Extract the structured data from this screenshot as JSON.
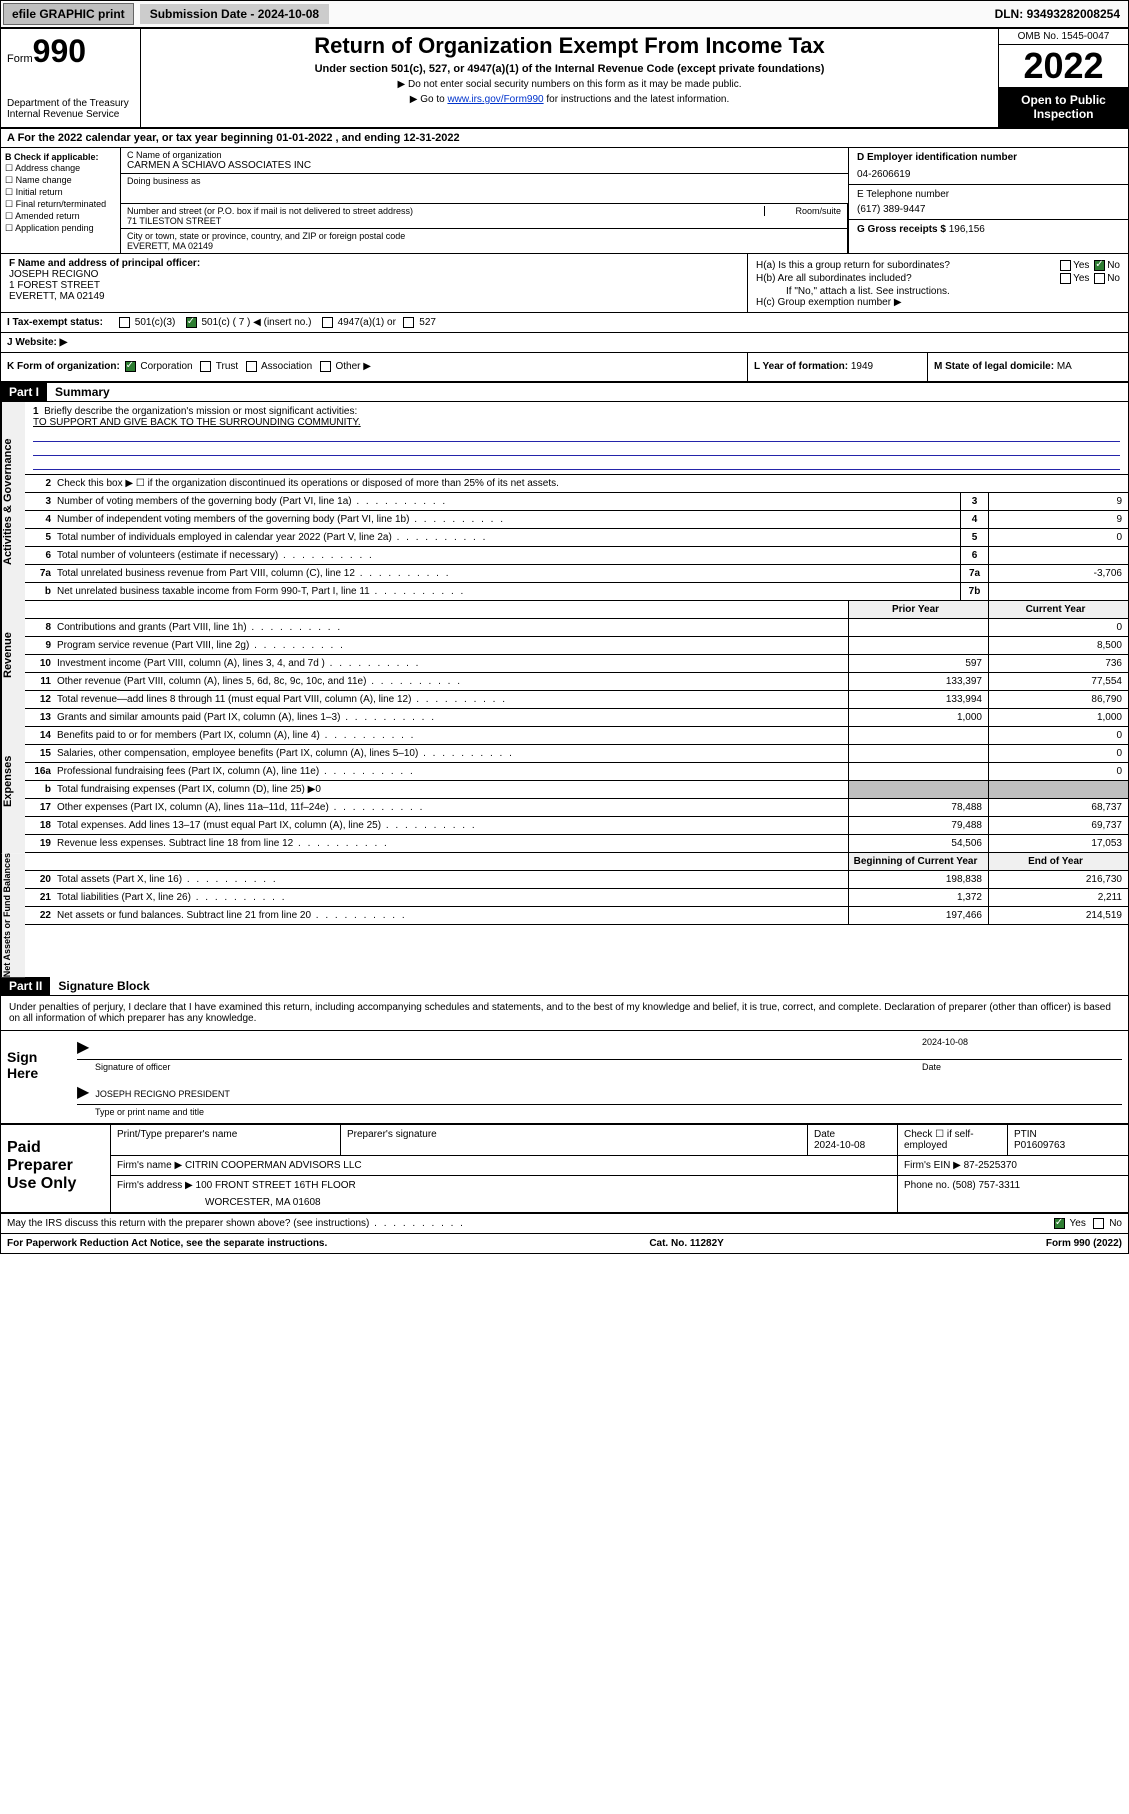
{
  "topbar": {
    "efile": "efile GRAPHIC print",
    "submission_label": "Submission Date - ",
    "submission_date": "2024-10-08",
    "dln_label": "DLN: ",
    "dln": "93493282008254"
  },
  "header": {
    "form_prefix": "Form",
    "form_number": "990",
    "dept": "Department of the Treasury\nInternal Revenue Service",
    "title": "Return of Organization Exempt From Income Tax",
    "subtitle": "Under section 501(c), 527, or 4947(a)(1) of the Internal Revenue Code (except private foundations)",
    "note1": "▶ Do not enter social security numbers on this form as it may be made public.",
    "note2_pre": "▶ Go to ",
    "note2_link": "www.irs.gov/Form990",
    "note2_post": " for instructions and the latest information.",
    "omb": "OMB No. 1545-0047",
    "year": "2022",
    "open_pub": "Open to Public Inspection"
  },
  "row_a": "A For the 2022 calendar year, or tax year beginning 01-01-2022   , and ending 12-31-2022",
  "section_b": {
    "label": "B Check if applicable:",
    "opts": [
      "Address change",
      "Name change",
      "Initial return",
      "Final return/terminated",
      "Amended return",
      "Application pending"
    ]
  },
  "section_c": {
    "name_label": "C Name of organization",
    "name": "CARMEN A SCHIAVO ASSOCIATES INC",
    "dba_label": "Doing business as",
    "dba": "",
    "street_label": "Number and street (or P.O. box if mail is not delivered to street address)",
    "room_label": "Room/suite",
    "street": "71 TILESTON STREET",
    "city_label": "City or town, state or province, country, and ZIP or foreign postal code",
    "city": "EVERETT, MA  02149"
  },
  "section_d": {
    "label": "D Employer identification number",
    "value": "04-2606619"
  },
  "section_e": {
    "label": "E Telephone number",
    "value": "(617) 389-9447"
  },
  "section_g": {
    "label": "G Gross receipts $ ",
    "value": "196,156"
  },
  "section_f": {
    "label": "F Name and address of principal officer:",
    "name": "JOSEPH RECIGNO",
    "street": "1 FOREST STREET",
    "city": "EVERETT, MA  02149"
  },
  "section_h": {
    "ha": "H(a)  Is this a group return for subordinates?",
    "hb": "H(b)  Are all subordinates included?",
    "hb_note": "If \"No,\" attach a list. See instructions.",
    "hc": "H(c)  Group exemption number ▶",
    "yes": "Yes",
    "no": "No"
  },
  "row_i": {
    "label": "I    Tax-exempt status:",
    "opt1": "501(c)(3)",
    "opt2": "501(c) ( 7 ) ◀ (insert no.)",
    "opt3": "4947(a)(1) or",
    "opt4": "527"
  },
  "row_j": {
    "label": "J    Website: ▶",
    "value": ""
  },
  "row_k": {
    "label": "K Form of organization:",
    "opts": [
      "Corporation",
      "Trust",
      "Association",
      "Other ▶"
    ]
  },
  "row_l": {
    "label": "L Year of formation: ",
    "value": "1949"
  },
  "row_m": {
    "label": "M State of legal domicile: ",
    "value": "MA"
  },
  "part1": {
    "header": "Part I",
    "title": "Summary"
  },
  "mission": {
    "num": "1",
    "label": "Briefly describe the organization's mission or most significant activities:",
    "text": "TO SUPPORT AND GIVE BACK TO THE SURROUNDING COMMUNITY."
  },
  "lines_gov": [
    {
      "num": "2",
      "txt": "Check this box ▶ ☐  if the organization discontinued its operations or disposed of more than 25% of its net assets.",
      "nobox": true
    },
    {
      "num": "3",
      "txt": "Number of voting members of the governing body (Part VI, line 1a)",
      "box": "3",
      "val": "9"
    },
    {
      "num": "4",
      "txt": "Number of independent voting members of the governing body (Part VI, line 1b)",
      "box": "4",
      "val": "9"
    },
    {
      "num": "5",
      "txt": "Total number of individuals employed in calendar year 2022 (Part V, line 2a)",
      "box": "5",
      "val": "0"
    },
    {
      "num": "6",
      "txt": "Total number of volunteers (estimate if necessary)",
      "box": "6",
      "val": ""
    },
    {
      "num": "7a",
      "txt": "Total unrelated business revenue from Part VIII, column (C), line 12",
      "box": "7a",
      "val": "-3,706"
    },
    {
      "num": "b",
      "txt": "Net unrelated business taxable income from Form 990-T, Part I, line 11",
      "box": "7b",
      "val": ""
    }
  ],
  "col_headers": {
    "prior": "Prior Year",
    "curr": "Current Year"
  },
  "lines_rev": [
    {
      "num": "8",
      "txt": "Contributions and grants (Part VIII, line 1h)",
      "prior": "",
      "curr": "0"
    },
    {
      "num": "9",
      "txt": "Program service revenue (Part VIII, line 2g)",
      "prior": "",
      "curr": "8,500"
    },
    {
      "num": "10",
      "txt": "Investment income (Part VIII, column (A), lines 3, 4, and 7d )",
      "prior": "597",
      "curr": "736"
    },
    {
      "num": "11",
      "txt": "Other revenue (Part VIII, column (A), lines 5, 6d, 8c, 9c, 10c, and 11e)",
      "prior": "133,397",
      "curr": "77,554"
    },
    {
      "num": "12",
      "txt": "Total revenue—add lines 8 through 11 (must equal Part VIII, column (A), line 12)",
      "prior": "133,994",
      "curr": "86,790"
    }
  ],
  "lines_exp": [
    {
      "num": "13",
      "txt": "Grants and similar amounts paid (Part IX, column (A), lines 1–3)",
      "prior": "1,000",
      "curr": "1,000"
    },
    {
      "num": "14",
      "txt": "Benefits paid to or for members (Part IX, column (A), line 4)",
      "prior": "",
      "curr": "0"
    },
    {
      "num": "15",
      "txt": "Salaries, other compensation, employee benefits (Part IX, column (A), lines 5–10)",
      "prior": "",
      "curr": "0"
    },
    {
      "num": "16a",
      "txt": "Professional fundraising fees (Part IX, column (A), line 11e)",
      "prior": "",
      "curr": "0"
    },
    {
      "num": "b",
      "txt": "Total fundraising expenses (Part IX, column (D), line 25) ▶0",
      "shaded": true
    },
    {
      "num": "17",
      "txt": "Other expenses (Part IX, column (A), lines 11a–11d, 11f–24e)",
      "prior": "78,488",
      "curr": "68,737"
    },
    {
      "num": "18",
      "txt": "Total expenses. Add lines 13–17 (must equal Part IX, column (A), line 25)",
      "prior": "79,488",
      "curr": "69,737"
    },
    {
      "num": "19",
      "txt": "Revenue less expenses. Subtract line 18 from line 12",
      "prior": "54,506",
      "curr": "17,053"
    }
  ],
  "col_headers_na": {
    "begin": "Beginning of Current Year",
    "end": "End of Year"
  },
  "lines_na": [
    {
      "num": "20",
      "txt": "Total assets (Part X, line 16)",
      "prior": "198,838",
      "curr": "216,730"
    },
    {
      "num": "21",
      "txt": "Total liabilities (Part X, line 26)",
      "prior": "1,372",
      "curr": "2,211"
    },
    {
      "num": "22",
      "txt": "Net assets or fund balances. Subtract line 21 from line 20",
      "prior": "197,466",
      "curr": "214,519"
    }
  ],
  "vert_labels": {
    "gov": "Activities & Governance",
    "rev": "Revenue",
    "exp": "Expenses",
    "na": "Net Assets or Fund Balances"
  },
  "part2": {
    "header": "Part II",
    "title": "Signature Block"
  },
  "sig_decl": "Under penalties of perjury, I declare that I have examined this return, including accompanying schedules and statements, and to the best of my knowledge and belief, it is true, correct, and complete. Declaration of preparer (other than officer) is based on all information of which preparer has any knowledge.",
  "sign_here": {
    "label": "Sign Here",
    "sig_of_officer": "Signature of officer",
    "date_label": "Date",
    "date": "2024-10-08",
    "name_title": "JOSEPH RECIGNO  PRESIDENT",
    "type_label": "Type or print name and title"
  },
  "paid": {
    "label": "Paid Preparer Use Only",
    "print_label": "Print/Type preparer's name",
    "prep_sig_label": "Preparer's signature",
    "date_label": "Date",
    "date": "2024-10-08",
    "check_label": "Check ☐ if self-employed",
    "ptin_label": "PTIN",
    "ptin": "P01609763",
    "firm_name_label": "Firm's name    ▶ ",
    "firm_name": "CITRIN COOPERMAN ADVISORS LLC",
    "firm_ein_label": "Firm's EIN ▶ ",
    "firm_ein": "87-2525370",
    "firm_addr_label": "Firm's address ▶ ",
    "firm_addr1": "100 FRONT STREET 16TH FLOOR",
    "firm_addr2": "WORCESTER, MA  01608",
    "phone_label": "Phone no. ",
    "phone": "(508) 757-3311"
  },
  "may_irs": {
    "txt": "May the IRS discuss this return with the preparer shown above? (see instructions)",
    "yes": "Yes",
    "no": "No"
  },
  "footer": {
    "left": "For Paperwork Reduction Act Notice, see the separate instructions.",
    "mid": "Cat. No. 11282Y",
    "right": "Form 990 (2022)"
  },
  "colors": {
    "link": "#0033cc",
    "rule": "#2424aa",
    "check_green": "#2e7d32"
  }
}
